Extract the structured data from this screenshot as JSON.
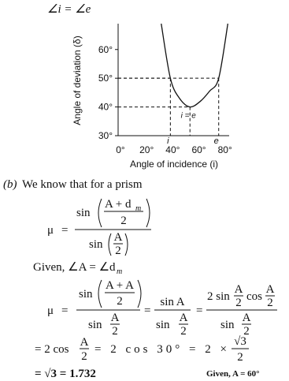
{
  "header": {
    "text": "∠i = ∠e"
  },
  "graph": {
    "type": "line",
    "y_label": "Angle of deviation (δ)",
    "x_label": "Angle of incidence (i)",
    "xlim": [
      0,
      85
    ],
    "ylim": [
      30,
      69
    ],
    "xticks": [
      {
        "value": 0,
        "label": "0°"
      },
      {
        "value": 20,
        "label": "20°"
      },
      {
        "value": 40,
        "label": "40°"
      },
      {
        "value": 60,
        "label": "60°"
      },
      {
        "value": 80,
        "label": "80°"
      }
    ],
    "yticks": [
      {
        "value": 30,
        "label": "30°"
      },
      {
        "value": 40,
        "label": "40°"
      },
      {
        "value": 50,
        "label": "50°"
      },
      {
        "value": 60,
        "label": "60°"
      }
    ],
    "curve": {
      "x": [
        33,
        40,
        47,
        55,
        63,
        70,
        77,
        84
      ],
      "y": [
        69,
        50,
        43,
        40,
        42,
        45.5,
        50,
        69
      ]
    },
    "markers": [
      {
        "label": "i",
        "x": 40,
        "y": 50
      },
      {
        "label": "e",
        "x": 77,
        "y": 50
      },
      {
        "label": "i = e",
        "x": 55,
        "y": 40
      }
    ]
  },
  "part_b": {
    "label": "(b)",
    "intro": "We know that for a prism"
  },
  "formula_1": {
    "lhs": "μ",
    "eq": "=",
    "fn": "sin",
    "num_top": "A + d",
    "num_sub": "m",
    "two": "2",
    "den_top": "A"
  },
  "given_1": {
    "text": "Given, ∠A = ∠d",
    "sub": "m"
  },
  "formula_2": {
    "lhs": "μ",
    "eq": "=",
    "fn": "sin",
    "cos": "cos",
    "num_top": "A + A",
    "two": "2",
    "A": "A",
    "sin_a": "sin A",
    "two_sin": "2 sin"
  },
  "line_3": {
    "a": "= 2 cos",
    "A": "A",
    "two": "2",
    "b": "= 2 cos 30° = 2 ×",
    "root": "√3"
  },
  "line_4": {
    "result": "= √3 = 1.732",
    "note": "Given, A = 60°"
  }
}
